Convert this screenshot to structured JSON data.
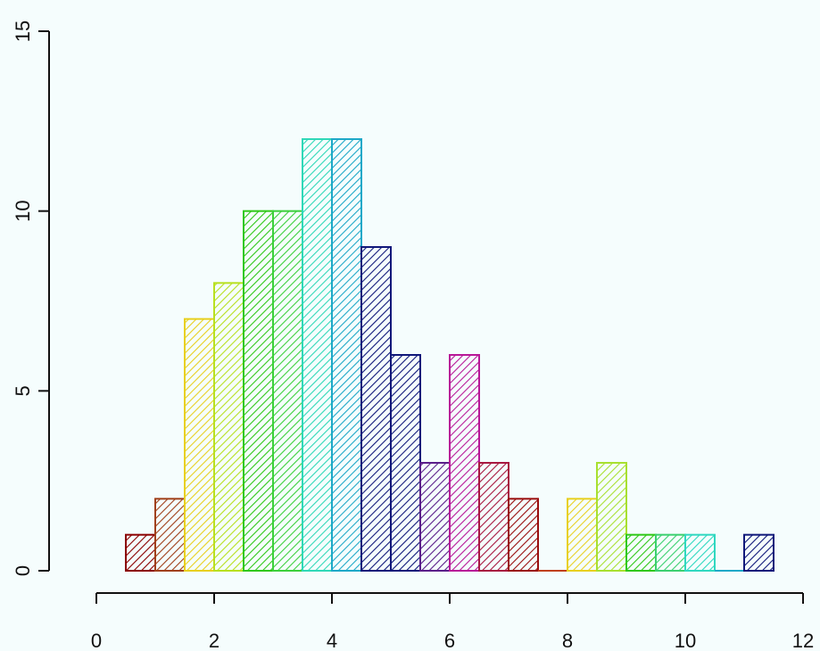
{
  "chart_data": {
    "type": "bar",
    "title": "",
    "xlabel": "",
    "ylabel": "",
    "xlim": [
      0,
      12
    ],
    "ylim": [
      0,
      15
    ],
    "x_ticks": [
      0,
      2,
      4,
      6,
      8,
      10,
      12
    ],
    "y_ticks": [
      0,
      5,
      10,
      15
    ],
    "grid": false,
    "legend": "none",
    "fill_style": "diagonal-hatch",
    "bin_width": 0.5,
    "bins": [
      {
        "start": 0.5,
        "end": 1.0,
        "value": 1,
        "color": "#8B0000"
      },
      {
        "start": 1.0,
        "end": 1.5,
        "value": 2,
        "color": "#A0401A"
      },
      {
        "start": 1.5,
        "end": 2.0,
        "value": 7,
        "color": "#E8D020"
      },
      {
        "start": 2.0,
        "end": 2.5,
        "value": 8,
        "color": "#B8E020"
      },
      {
        "start": 2.5,
        "end": 3.0,
        "value": 10,
        "color": "#30C818"
      },
      {
        "start": 3.0,
        "end": 3.5,
        "value": 10,
        "color": "#3CD03C"
      },
      {
        "start": 3.5,
        "end": 4.0,
        "value": 12,
        "color": "#30D8B8"
      },
      {
        "start": 4.0,
        "end": 4.5,
        "value": 12,
        "color": "#1EA8C8"
      },
      {
        "start": 4.5,
        "end": 5.0,
        "value": 9,
        "color": "#10187A"
      },
      {
        "start": 5.0,
        "end": 5.5,
        "value": 6,
        "color": "#10187A"
      },
      {
        "start": 5.5,
        "end": 6.0,
        "value": 3,
        "color": "#5A1E8A"
      },
      {
        "start": 6.0,
        "end": 6.5,
        "value": 6,
        "color": "#B81898"
      },
      {
        "start": 6.5,
        "end": 7.0,
        "value": 3,
        "color": "#A81840"
      },
      {
        "start": 7.0,
        "end": 7.5,
        "value": 2,
        "color": "#9A0E0E"
      },
      {
        "start": 7.5,
        "end": 8.0,
        "value": 0,
        "color": "#C04018"
      },
      {
        "start": 8.0,
        "end": 8.5,
        "value": 2,
        "color": "#E8D020"
      },
      {
        "start": 8.5,
        "end": 9.0,
        "value": 3,
        "color": "#A8E030"
      },
      {
        "start": 9.0,
        "end": 9.5,
        "value": 1,
        "color": "#30C818"
      },
      {
        "start": 9.5,
        "end": 10.0,
        "value": 1,
        "color": "#3CD070"
      },
      {
        "start": 10.0,
        "end": 10.5,
        "value": 1,
        "color": "#30D8C0"
      },
      {
        "start": 10.5,
        "end": 11.0,
        "value": 0,
        "color": "#1EA8C8"
      },
      {
        "start": 11.0,
        "end": 11.5,
        "value": 1,
        "color": "#10187A"
      }
    ]
  }
}
